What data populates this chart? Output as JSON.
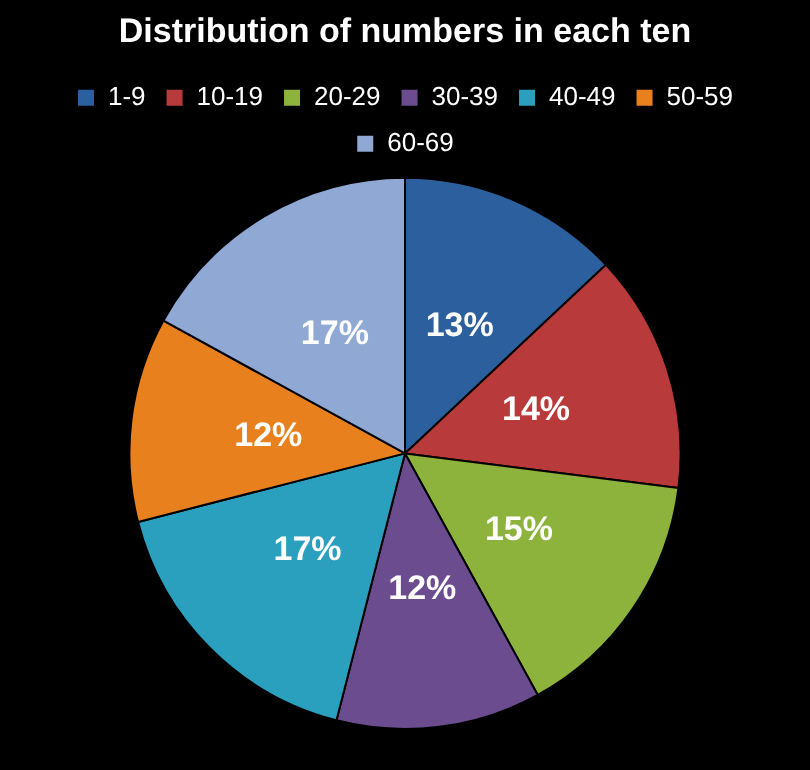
{
  "chart_data": {
    "type": "pie",
    "title": "Distribution of numbers in each ten",
    "categories": [
      "1-9",
      "10-19",
      "20-29",
      "30-39",
      "40-49",
      "50-59",
      "60-69"
    ],
    "values": [
      13,
      14,
      15,
      12,
      17,
      12,
      17
    ],
    "colors": [
      "#2c5f9e",
      "#b83a3a",
      "#8db33c",
      "#6a4c8f",
      "#2aa0be",
      "#e8801e",
      "#8fa8d4"
    ],
    "value_labels": [
      "13%",
      "14%",
      "15%",
      "12%",
      "17%",
      "12%",
      "17%"
    ],
    "legend": "top"
  }
}
